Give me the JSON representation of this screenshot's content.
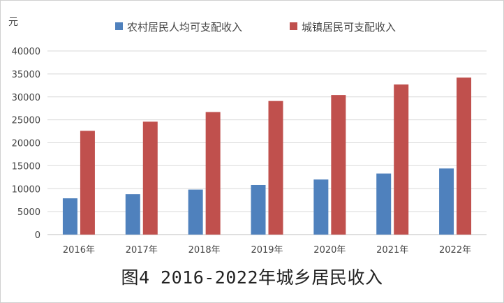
{
  "figure_title": "图4   2016-2022年城乡居民收入",
  "chart_data": {
    "type": "bar",
    "title": "",
    "ylabel": "元",
    "xlabel": "",
    "categories": [
      "2016年",
      "2017年",
      "2018年",
      "2019年",
      "2020年",
      "2021年",
      "2022年"
    ],
    "series": [
      {
        "name": "农村居民人均可支配收入",
        "color": "#4f81bd",
        "values": [
          7900,
          8800,
          9800,
          10800,
          12000,
          13300,
          14400
        ]
      },
      {
        "name": "城镇居民可支配收入",
        "color": "#c0504d",
        "values": [
          22600,
          24600,
          26700,
          29100,
          30400,
          32700,
          34200
        ]
      }
    ],
    "ylim": [
      0,
      40000
    ],
    "yticks": [
      0,
      5000,
      10000,
      15000,
      20000,
      25000,
      30000,
      35000,
      40000
    ],
    "grid": true,
    "legend_position": "top"
  }
}
